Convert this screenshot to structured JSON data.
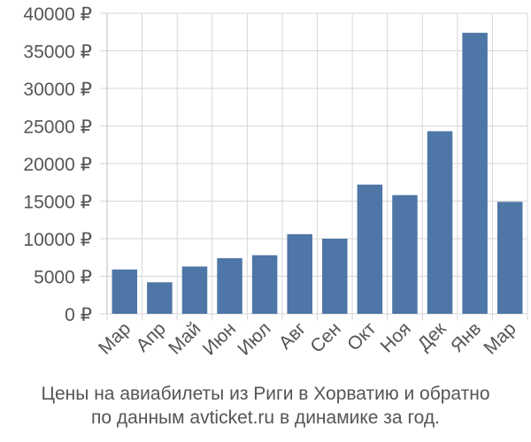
{
  "chart_data": {
    "type": "bar",
    "categories": [
      "Мар",
      "Апр",
      "Май",
      "Июн",
      "Июл",
      "Авг",
      "Сен",
      "Окт",
      "Ноя",
      "Дек",
      "Янв",
      "Мар"
    ],
    "values": [
      5900,
      4200,
      6300,
      7400,
      7800,
      10600,
      10000,
      17200,
      15800,
      24300,
      37400,
      14900
    ],
    "y_ticks": [
      "0 ₽",
      "5000 ₽",
      "10000 ₽",
      "15000 ₽",
      "20000 ₽",
      "25000 ₽",
      "30000 ₽",
      "35000 ₽",
      "40000 ₽"
    ],
    "ylim": [
      0,
      40000
    ],
    "grid": true,
    "bar_color": "#4e76a6",
    "caption_line1": "Цены на авиабилеты из Риги в Хорватию и обратно",
    "caption_line2": "по данным avticket.ru в динамике за год."
  }
}
